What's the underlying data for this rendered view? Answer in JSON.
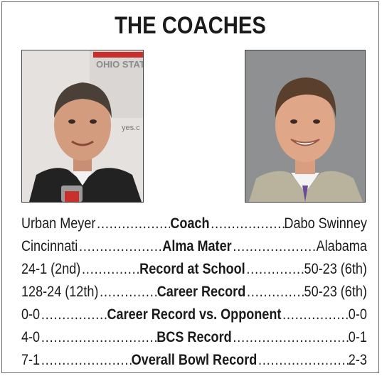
{
  "title": "THE COACHES",
  "photos": {
    "left_icon": "coach-photo-left",
    "right_icon": "coach-photo-right",
    "left_logo_text": "OHIO STATE",
    "left_caption_text": "yes.c"
  },
  "rows": [
    {
      "left": "Urban Meyer",
      "center": "Coach",
      "right": "Dabo Swinney"
    },
    {
      "left": "Cincinnati",
      "center": "Alma Mater",
      "right": "Alabama"
    },
    {
      "left": "24-1 (2nd)",
      "center": "Record at School",
      "right": "50-23 (6th)"
    },
    {
      "left": "128-24 (12th)",
      "center": "Career Record",
      "right": "50-23 (6th)"
    },
    {
      "left": "0-0",
      "center": "Career Record vs. Opponent",
      "right": "0-0"
    },
    {
      "left": "4-0",
      "center": "BCS Record",
      "right": "0-1"
    },
    {
      "left": "7-1",
      "center": "Overall Bowl Record",
      "right": "2-3"
    }
  ]
}
